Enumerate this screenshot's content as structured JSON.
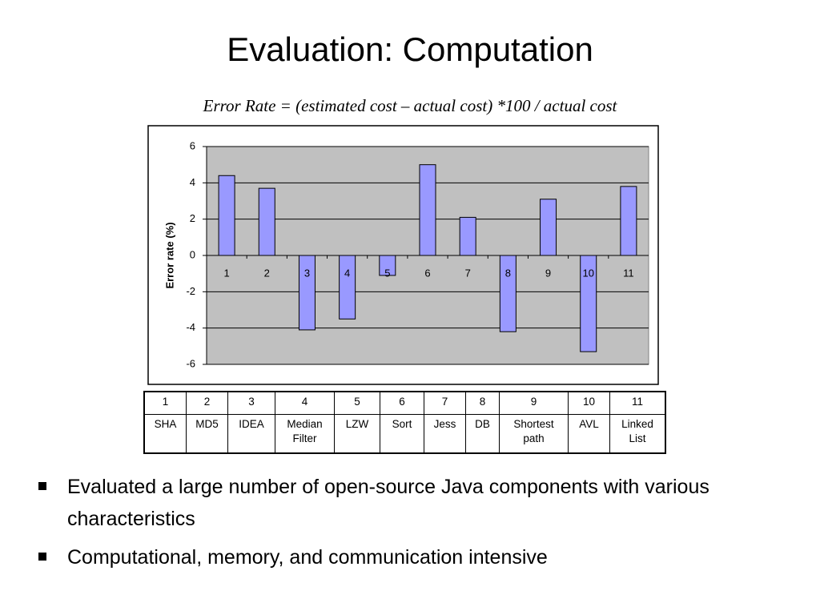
{
  "slide_title": "Evaluation: Computation",
  "formula": "Error Rate = (estimated cost – actual cost) *100 / actual cost",
  "chart_data": {
    "type": "bar",
    "y_label": "Error rate (%)",
    "categories": [
      "1",
      "2",
      "3",
      "4",
      "5",
      "6",
      "7",
      "8",
      "9",
      "10",
      "11"
    ],
    "values": [
      4.4,
      3.7,
      -4.1,
      -3.5,
      -1.1,
      5.0,
      2.1,
      -4.2,
      3.1,
      -5.3,
      3.8
    ],
    "color": "#9999ff",
    "ylim": [
      -6,
      6
    ],
    "yticks": [
      -6,
      -4,
      -2,
      0,
      2,
      4,
      6
    ],
    "grid": true
  },
  "table": {
    "header": [
      "1",
      "2",
      "3",
      "4",
      "5",
      "6",
      "7",
      "8",
      "9",
      "10",
      "11"
    ],
    "rows": [
      [
        "SHA",
        "MD5",
        "IDEA",
        "Median Filter",
        "LZW",
        "Sort",
        "Jess",
        "DB",
        "Shortest path",
        "AVL",
        "Linked List"
      ]
    ]
  },
  "bullets": [
    "Evaluated a large number of open-source Java components with various characteristics",
    "Computational, memory, and communication intensive"
  ]
}
